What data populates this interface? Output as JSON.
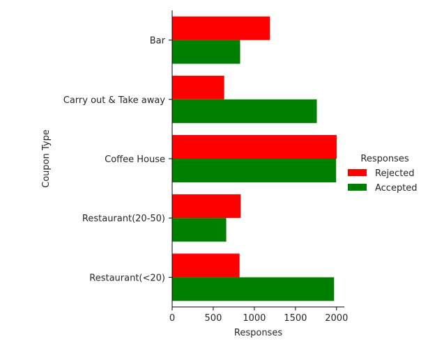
{
  "chart_data": {
    "type": "bar",
    "orientation": "horizontal",
    "categories": [
      "Bar",
      "Carry out & Take away",
      "Coffee House",
      "Restaurant(20-50)",
      "Restaurant(<20)"
    ],
    "series": [
      {
        "name": "Rejected",
        "color": "#ff0000",
        "values": [
          1190,
          633,
          2001,
          834,
          820
        ]
      },
      {
        "name": "Accepted",
        "color": "#008000",
        "values": [
          827,
          1760,
          1995,
          658,
          1970
        ]
      }
    ],
    "xlabel": "Responses",
    "ylabel": "Coupon Type",
    "xlim": [
      0,
      2100
    ],
    "xticks": [
      0,
      500,
      1000,
      1500,
      2000
    ],
    "grid": false,
    "legend": {
      "title": "Responses",
      "placement": "right"
    }
  }
}
